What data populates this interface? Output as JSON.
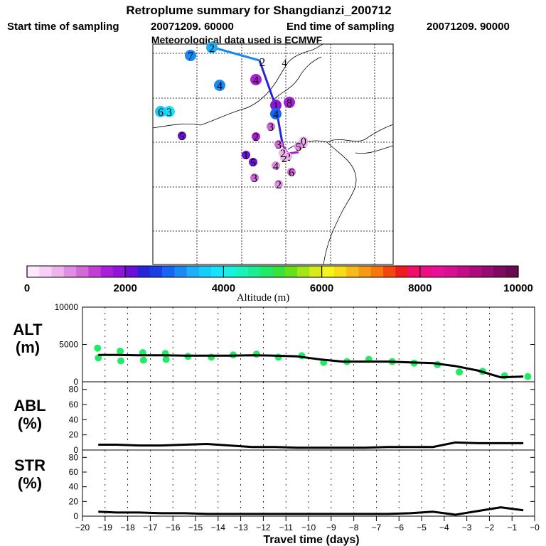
{
  "header": {
    "title": "Retroplume summary for Shangdianzi_200712",
    "start_label": "Start time of sampling",
    "start_value": "20071209. 60000",
    "end_label": "End time of sampling",
    "end_value": "20071209. 90000",
    "met_line": "Meteorological data used is ECMWF"
  },
  "colorbar": {
    "label": "Altitude (m)",
    "tick_labels": [
      "0",
      "2000",
      "4000",
      "6000",
      "8000",
      "10000"
    ],
    "colors": [
      "#fde8fd",
      "#f6d0f6",
      "#ecb3ec",
      "#e08ee3",
      "#d26ad6",
      "#c23fd3",
      "#a81fd4",
      "#8f16d6",
      "#6a10d7",
      "#2626d6",
      "#1a3ee6",
      "#1665f0",
      "#1a8af3",
      "#1faef7",
      "#17cdfb",
      "#16e3fb",
      "#18f2e0",
      "#19f2b8",
      "#1cee8f",
      "#22e966",
      "#38e13d",
      "#66e01a",
      "#a2e51a",
      "#d7eb1c",
      "#f5f31c",
      "#f8dc1a",
      "#f7ba18",
      "#f59a15",
      "#f47712",
      "#f2470f",
      "#ee1c21",
      "#f00f6a",
      "#ec0f84",
      "#e7109a",
      "#d70f93",
      "#c30d88",
      "#ad0d7c",
      "#960c70",
      "#7e0a60",
      "#670a50"
    ]
  },
  "map": {
    "markers": [
      {
        "label": "2",
        "alt": 3300
      },
      {
        "label": "7",
        "alt": 3200
      },
      {
        "label": "4",
        "alt": 3000
      },
      {
        "label": "4",
        "alt": 1500
      },
      {
        "label": "1",
        "alt": 1800
      },
      {
        "label": "8",
        "alt": 1500
      },
      {
        "label": "4",
        "alt": 2800
      },
      {
        "label": "3",
        "alt": 3800
      },
      {
        "label": "6",
        "alt": 3600
      },
      {
        "label": "5",
        "alt": 2100
      },
      {
        "label": "2",
        "alt": 1700
      },
      {
        "label": "3",
        "alt": 1200
      },
      {
        "label": "3",
        "alt": 1000
      },
      {
        "label": "1",
        "alt": 2100
      },
      {
        "label": "5",
        "alt": 2100
      },
      {
        "label": "4",
        "alt": 900
      },
      {
        "label": "6",
        "alt": 1000
      },
      {
        "label": "3",
        "alt": 1200
      },
      {
        "label": "2",
        "alt": 800
      },
      {
        "label": "2",
        "alt": 600
      },
      {
        "label": "1",
        "alt": 600
      },
      {
        "label": "0",
        "alt": 500
      },
      {
        "label": "2",
        "alt": 600
      },
      {
        "label": "5",
        "alt": 800
      },
      {
        "label": "2",
        "alt": 700
      }
    ]
  },
  "chart_data": [
    {
      "type": "line",
      "panel": "ALT",
      "ylabel": "ALT (m)",
      "ylabel_line1": "ALT",
      "ylabel_line2": "(m)",
      "ylim": [
        0,
        10000
      ],
      "yticks": [
        "10000",
        "5000",
        "0"
      ],
      "x": [
        -19.3,
        -18.5,
        -17.5,
        -16.5,
        -15.5,
        -14.5,
        -13.5,
        -12.5,
        -11.5,
        -10.5,
        -9.5,
        -8.5,
        -7.5,
        -6.5,
        -5.5,
        -4.5,
        -3.5,
        -2.5,
        -1.5,
        -0.5
      ],
      "series": [
        {
          "name": "mean altitude",
          "values": [
            3600,
            3600,
            3550,
            3550,
            3500,
            3500,
            3500,
            3550,
            3500,
            3400,
            3000,
            2700,
            2700,
            2700,
            2600,
            2500,
            2100,
            1500,
            600,
            700
          ]
        }
      ],
      "scatter": {
        "name": "particle altitudes",
        "x": [
          -19.3,
          -19.3,
          -18.3,
          -18.3,
          -17.3,
          -17.3,
          -16.3,
          -16.3,
          -15.3,
          -14.3,
          -13.3,
          -12.3,
          -11.3,
          -10.3,
          -9.3,
          -8.3,
          -7.3,
          -6.3,
          -5.3,
          -4.3,
          -3.3,
          -2.3,
          -1.3,
          -0.3
        ],
        "y": [
          4500,
          3200,
          4100,
          2800,
          3900,
          2900,
          3800,
          3000,
          3400,
          3300,
          3600,
          3700,
          3300,
          3500,
          2600,
          2700,
          3000,
          2700,
          2500,
          2300,
          1300,
          1400,
          800,
          700
        ]
      }
    },
    {
      "type": "line",
      "panel": "ABL",
      "ylabel": "ABL (%)",
      "ylabel_line1": "ABL",
      "ylabel_line2": "(%)",
      "ylim": [
        0,
        90
      ],
      "yticks": [
        "80",
        "60",
        "40",
        "20",
        "0"
      ],
      "x": [
        -19.3,
        -18.5,
        -17.5,
        -16.5,
        -15.5,
        -14.5,
        -13.5,
        -12.5,
        -11.5,
        -10.5,
        -9.5,
        -8.5,
        -7.5,
        -6.5,
        -5.5,
        -4.5,
        -3.5,
        -2.5,
        -1.5,
        -0.5
      ],
      "series": [
        {
          "name": "ABL fraction",
          "values": [
            7,
            7,
            6,
            6,
            7,
            8,
            6,
            4,
            4,
            3,
            3,
            3,
            3,
            4,
            4,
            4,
            10,
            9,
            9,
            9
          ]
        }
      ]
    },
    {
      "type": "line",
      "panel": "STR",
      "ylabel": "STR (%)",
      "ylabel_line1": "STR",
      "ylabel_line2": "(%)",
      "ylim": [
        0,
        90
      ],
      "yticks": [
        "80",
        "60",
        "40",
        "20",
        "0"
      ],
      "xlabel": "Travel time (days)",
      "xlim": [
        -20,
        0
      ],
      "xticks": [
        "−20",
        "−19",
        "−18",
        "−17",
        "−16",
        "−15",
        "−14",
        "−13",
        "−12",
        "−11",
        "−10",
        "−9",
        "−8",
        "−7",
        "−6",
        "−5",
        "−4",
        "−3",
        "−2",
        "−1",
        "−0"
      ],
      "x": [
        -19.3,
        -18.5,
        -17.5,
        -16.5,
        -15.5,
        -14.5,
        -13.5,
        -12.5,
        -11.5,
        -10.5,
        -9.5,
        -8.5,
        -7.5,
        -6.5,
        -5.5,
        -4.5,
        -3.5,
        -2.5,
        -1.5,
        -0.5
      ],
      "series": [
        {
          "name": "stratospheric fraction",
          "values": [
            6,
            5,
            5,
            4,
            4,
            3,
            3,
            3,
            3,
            3,
            3,
            3,
            3,
            3,
            4,
            6,
            2,
            7,
            12,
            8
          ]
        }
      ]
    }
  ]
}
